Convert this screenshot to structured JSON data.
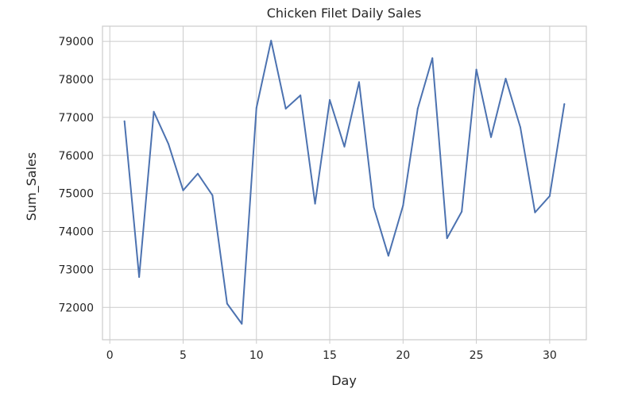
{
  "chart_data": {
    "type": "line",
    "title": "Chicken Filet Daily Sales",
    "xlabel": "Day",
    "ylabel": "Sum_Sales",
    "xlim": [
      -0.5,
      32.5
    ],
    "ylim": [
      71150,
      79400
    ],
    "xticks": [
      0,
      5,
      10,
      15,
      20,
      25,
      30
    ],
    "yticks": [
      72000,
      73000,
      74000,
      75000,
      76000,
      77000,
      78000,
      79000
    ],
    "grid": true,
    "series": [
      {
        "x": [
          1,
          2,
          3,
          4,
          5,
          6,
          7,
          8,
          9,
          10,
          11,
          12,
          13,
          14,
          15,
          16,
          17,
          18,
          19,
          20,
          21,
          22,
          23,
          24,
          25,
          26,
          27,
          28,
          29,
          30,
          31
        ],
        "values": [
          76900,
          72800,
          77150,
          76300,
          75080,
          75520,
          74950,
          72100,
          71570,
          77250,
          79020,
          77230,
          77580,
          74730,
          77460,
          76230,
          77930,
          74640,
          73360,
          74680,
          77230,
          78560,
          73820,
          74520,
          78260,
          76480,
          78020,
          76740,
          74500,
          74930,
          77350
        ],
        "color": "#4c72b0"
      }
    ]
  }
}
